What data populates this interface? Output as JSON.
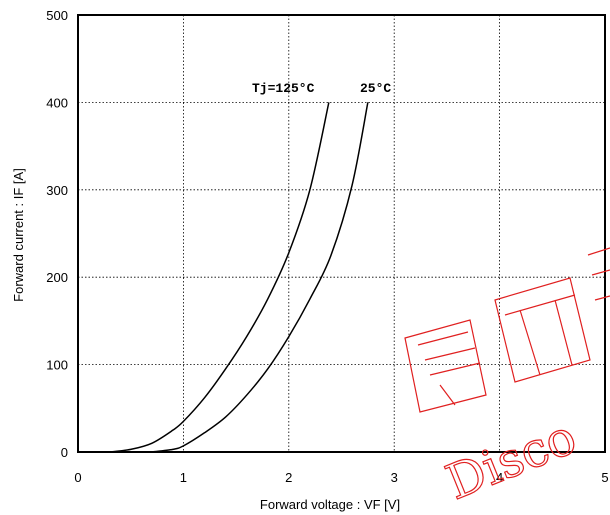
{
  "chart_data": {
    "type": "line",
    "title": "",
    "xlabel": "Forward voltage  :  VF [V]",
    "ylabel": "Forward current  :  IF [A]",
    "xlim": [
      0,
      5
    ],
    "ylim": [
      0,
      500
    ],
    "x_ticks": [
      "0",
      "1",
      "2",
      "3",
      "4",
      "5"
    ],
    "y_ticks": [
      "0",
      "100",
      "200",
      "300",
      "400",
      "500"
    ],
    "grid": true,
    "annotations": [
      "Tj=125°C",
      "25°C"
    ],
    "series": [
      {
        "name": "Tj=125°C",
        "points": [
          [
            0.3,
            0
          ],
          [
            0.5,
            3
          ],
          [
            0.7,
            10
          ],
          [
            0.9,
            25
          ],
          [
            1.0,
            35
          ],
          [
            1.2,
            62
          ],
          [
            1.4,
            95
          ],
          [
            1.6,
            132
          ],
          [
            1.8,
            175
          ],
          [
            2.0,
            228
          ],
          [
            2.2,
            300
          ],
          [
            2.38,
            400
          ]
        ]
      },
      {
        "name": "25°C",
        "points": [
          [
            0.7,
            0
          ],
          [
            0.9,
            3
          ],
          [
            1.0,
            7
          ],
          [
            1.2,
            22
          ],
          [
            1.4,
            40
          ],
          [
            1.6,
            65
          ],
          [
            1.8,
            95
          ],
          [
            2.0,
            132
          ],
          [
            2.2,
            175
          ],
          [
            2.4,
            225
          ],
          [
            2.6,
            305
          ],
          [
            2.75,
            400
          ]
        ]
      }
    ]
  },
  "watermark": {
    "text_lines": [
      "Disco"
    ],
    "color": "#e02020"
  }
}
